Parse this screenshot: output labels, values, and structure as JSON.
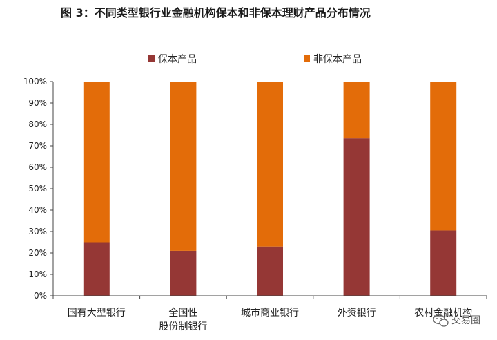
{
  "chart_data": {
    "type": "bar",
    "stacked": true,
    "title": "图 3：不同类型银行业金融机构保本和非保本理财产品分布情况",
    "categories": [
      [
        "国有大型银行"
      ],
      [
        "全国性",
        "股份制银行"
      ],
      [
        "城市商业银行"
      ],
      [
        "外资银行"
      ],
      [
        "农村金融机构"
      ]
    ],
    "series": [
      {
        "name": "保本产品",
        "color": "#953735",
        "values": [
          25,
          21,
          23,
          73.5,
          30.5
        ]
      },
      {
        "name": "非保本产品",
        "color": "#e36c09",
        "values": [
          75,
          79,
          77,
          26.5,
          69.5
        ]
      }
    ],
    "ylim": [
      0,
      100
    ],
    "yticks": [
      "0%",
      "10%",
      "20%",
      "30%",
      "40%",
      "50%",
      "60%",
      "70%",
      "80%",
      "90%",
      "100%"
    ],
    "xlabel": "",
    "ylabel": "",
    "grid": false,
    "legend_position": "top"
  },
  "watermark": {
    "text": "交易圈",
    "icon": "wechat-icon"
  }
}
